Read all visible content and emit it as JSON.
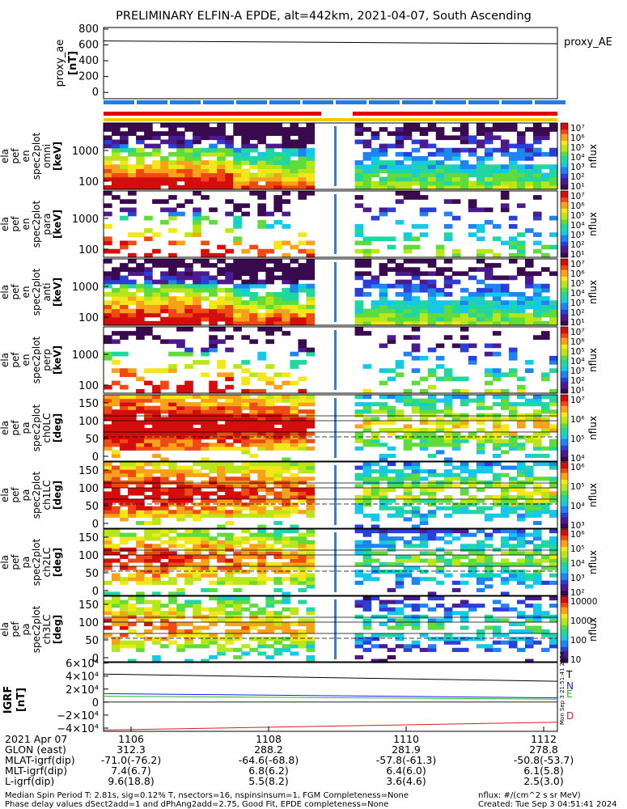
{
  "title": "PRELIMINARY ELFIN-A EPDE, alt=442km, 2021-04-07, South Ascending",
  "colorscale": [
    "#ffffff",
    "#3a0a4f",
    "#4b1a8e",
    "#2a3fd8",
    "#1e84f0",
    "#16c8e8",
    "#22d6a0",
    "#5fdc3c",
    "#b9e619",
    "#f3e61a",
    "#f7a21a",
    "#ef4a14",
    "#d40d0d"
  ],
  "proxy_ae": {
    "ylabel": [
      "proxy_ae",
      "[nT]"
    ],
    "legend": "proxy_AE",
    "yticks": [
      "800",
      "600",
      "400",
      "200",
      "0"
    ],
    "ylim": [
      -80,
      820
    ],
    "value_start": 650,
    "value_end": 615
  },
  "status_bars": {
    "colors": {
      "red": "#dd0000",
      "blue": "#1e7fe0",
      "yellow": "#f4c800"
    }
  },
  "panels": [
    {
      "id": "pef-en-omni",
      "kind": "energy",
      "ylabel": [
        "ela",
        "pef",
        "en",
        "spec2plot",
        "omni",
        "[keV]"
      ],
      "yticks": [
        "1000",
        "100"
      ],
      "cbar_ticks": [
        "10⁷",
        "10⁶",
        "10⁵",
        "10⁴",
        "10³",
        "10²",
        "10¹"
      ],
      "cbar_label": "nflux",
      "dense": 0.95
    },
    {
      "id": "pef-en-para",
      "kind": "energy",
      "ylabel": [
        "ela",
        "pef",
        "en",
        "spec2plot",
        "para",
        "[keV]"
      ],
      "yticks": [
        "1000",
        "100"
      ],
      "cbar_ticks": [
        "10⁷",
        "10⁶",
        "10⁵",
        "10⁴",
        "10³",
        "10²",
        "10¹"
      ],
      "cbar_label": "nflux",
      "dense": 0.35
    },
    {
      "id": "pef-en-anti",
      "kind": "energy",
      "ylabel": [
        "ela",
        "pef",
        "en",
        "spec2plot",
        "anti",
        "[keV]"
      ],
      "yticks": [
        "1000",
        "100"
      ],
      "cbar_ticks": [
        "10⁷",
        "10⁶",
        "10⁵",
        "10⁴",
        "10³",
        "10²",
        "10¹"
      ],
      "cbar_label": "nflux",
      "dense": 0.95
    },
    {
      "id": "pef-en-perp",
      "kind": "energy",
      "ylabel": [
        "ela",
        "pef",
        "en",
        "spec2plot",
        "perp",
        "[keV]"
      ],
      "yticks": [
        "1000",
        "100"
      ],
      "cbar_ticks": [
        "10⁷",
        "10⁶",
        "10⁵",
        "10⁴",
        "10³",
        "10²",
        "10¹"
      ],
      "cbar_label": "nflux",
      "dense": 0.3
    },
    {
      "id": "pef-pa-ch0LC",
      "kind": "pa",
      "ylabel": [
        "ela",
        "pef",
        "pa",
        "spec2plot",
        "ch0LC",
        "[deg]"
      ],
      "yticks": [
        "150",
        "100",
        "50",
        "0"
      ],
      "cbar_ticks": [
        "10⁷",
        "10⁶",
        "10⁵",
        "10⁴"
      ],
      "cbar_label": "nflux",
      "dense": 0.9
    },
    {
      "id": "pef-pa-ch1LC",
      "kind": "pa",
      "ylabel": [
        "ela",
        "pef",
        "pa",
        "spec2plot",
        "ch1LC",
        "[deg]"
      ],
      "yticks": [
        "150",
        "100",
        "50",
        "0"
      ],
      "cbar_ticks": [
        "10⁶",
        "10⁵",
        "10⁴",
        "10³"
      ],
      "cbar_label": "nflux",
      "dense": 0.85
    },
    {
      "id": "pef-pa-ch2LC",
      "kind": "pa",
      "ylabel": [
        "ela",
        "pef",
        "pa",
        "spec2plot",
        "ch2LC",
        "[deg]"
      ],
      "yticks": [
        "150",
        "100",
        "50",
        "0"
      ],
      "cbar_ticks": [
        "10⁶",
        "10⁵",
        "10⁴",
        "10³",
        "10²"
      ],
      "cbar_label": "nflux",
      "dense": 0.75
    },
    {
      "id": "pef-pa-ch3LC",
      "kind": "pa",
      "ylabel": [
        "ela",
        "pef",
        "pa",
        "spec2plot",
        "ch3LC",
        "[deg]"
      ],
      "yticks": [
        "150",
        "100",
        "50",
        "0"
      ],
      "cbar_ticks": [
        "10000",
        "1000",
        "100",
        "10"
      ],
      "cbar_label": "nflux",
      "dense": 0.6
    }
  ],
  "igrf": {
    "ylabel": [
      "IGRF",
      "[nT]"
    ],
    "yticks": [
      "6×10⁴",
      "4×10⁴",
      "2×10⁴",
      "0",
      "−2×10⁴",
      "−4×10⁴"
    ],
    "ylim": [
      -45000,
      62000
    ],
    "series": [
      {
        "name": "T",
        "color": "#000000",
        "start": 43000,
        "end": 32000
      },
      {
        "name": "N",
        "color": "#1a1aff",
        "start": 13000,
        "end": 6500
      },
      {
        "name": "E",
        "color": "#22bb22",
        "start": 9000,
        "end": 4500
      },
      {
        "name": "D",
        "color": "#d42020",
        "start": -43000,
        "end": -31000
      }
    ],
    "side_text": "Mon Sep  3 21:51:41 2024"
  },
  "chart_data": {
    "type": "heatmap",
    "title": "PRELIMINARY ELFIN-A EPDE, alt=442km, 2021-04-07, South Ascending",
    "x_ticks": [
      "1106",
      "1108",
      "1110",
      "1112"
    ],
    "x_range_minutes": [
      1105.6,
      1112.2
    ],
    "panels": [
      "proxy_ae",
      "pef en omni",
      "pef en para",
      "pef en anti",
      "pef en perp",
      "pef pa ch0LC",
      "pef pa ch1LC",
      "pef pa ch2LC",
      "pef pa ch3LC",
      "IGRF"
    ],
    "colorbar_label": "nflux"
  },
  "orbit_table": {
    "rows": [
      {
        "label": "2021 Apr 07",
        "values": [
          "1106",
          "1108",
          "1110",
          "1112"
        ]
      },
      {
        "label": "GLON (east)",
        "values": [
          "312.3",
          "288.2",
          "281.9",
          "278.8"
        ]
      },
      {
        "label": "MLAT-igrf(dip)",
        "values": [
          "-71.0(-76.2)",
          "-64.6(-68.8)",
          "-57.8(-61.3)",
          "-50.8(-53.7)"
        ]
      },
      {
        "label": "MLT-igrf(dip)",
        "values": [
          "7.4(6.7)",
          "6.8(6.2)",
          "6.4(6.0)",
          "6.1(5.8)"
        ]
      },
      {
        "label": "L-igrf(dip)",
        "values": [
          "9.6(18.8)",
          "5.5(8.2)",
          "3.6(4.6)",
          "2.5(3.0)"
        ]
      }
    ]
  },
  "footer": {
    "line1_left": "Median Spin Period T: 2.81s, sig=0.12% T, nsectors=16, nspinsinsum=1, FGM Completeness=None",
    "line2_left": "Phase delay values dSect2add=1 and dPhAng2add=2.75, Good Fit, EPDE completeness=None",
    "line1_right": "nflux: #/(cm^2 s sr MeV)",
    "line2_right": "Created: Tue Sep  3 04:51:41 2024"
  }
}
